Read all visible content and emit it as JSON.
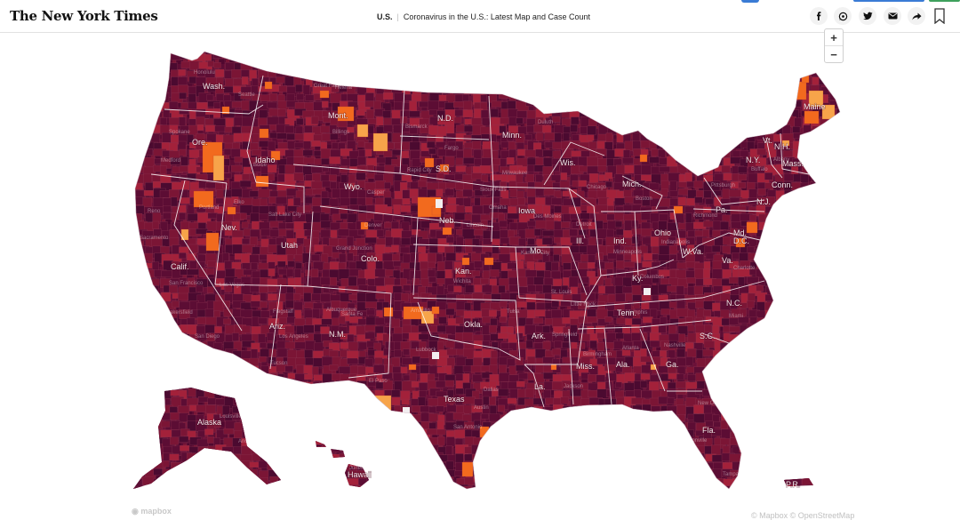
{
  "header": {
    "logo": "The New York Times",
    "section": "U.S.",
    "title": "Coronavirus in the U.S.: Latest Map and Case Count"
  },
  "share_icons": [
    "facebook-icon",
    "whatsapp-icon",
    "twitter-icon",
    "email-icon",
    "share-icon"
  ],
  "zoom": {
    "in_label": "+",
    "out_label": "−"
  },
  "map": {
    "colors": {
      "darkest": "#4b0a30",
      "dark": "#5c0d34",
      "medium": "#7b1535",
      "red": "#a3213a",
      "orange": "#f26a1e",
      "light_orange": "#f7a44a",
      "border": "#ffffff"
    },
    "state_labels": [
      "Wash.",
      "Ore.",
      "Calif.",
      "Nev.",
      "Idaho",
      "Mont.",
      "Wyo.",
      "Utah",
      "Ariz.",
      "Colo.",
      "N.M.",
      "N.D.",
      "S.D.",
      "Neb.",
      "Kan.",
      "Okla.",
      "Texas",
      "Minn.",
      "Iowa",
      "Mo.",
      "Ark.",
      "La.",
      "Wis.",
      "Ill.",
      "Mich.",
      "Ind.",
      "Ohio",
      "Ky.",
      "Tenn.",
      "Miss.",
      "Ala.",
      "Ga.",
      "Fla.",
      "S.C.",
      "N.C.",
      "Va.",
      "W.Va.",
      "Pa.",
      "N.Y.",
      "Vt.",
      "N.H.",
      "Mass.",
      "Conn.",
      "N.J.",
      "Md.",
      "D.C.",
      "Maine",
      "Alaska",
      "Hawaii",
      "P.R."
    ],
    "city_labels": [
      "Medford",
      "Boise",
      "Elko",
      "Salt Lake City",
      "Las Vegas",
      "Bakersfield",
      "San Diego",
      "Tucson",
      "Flagstaff",
      "Albuquerque",
      "Santa Fe",
      "Denver",
      "Grand Junction",
      "Casper",
      "Billings",
      "Helena",
      "Great Falls",
      "Fargo",
      "Bismarck",
      "Rapid City",
      "Sioux Falls",
      "Omaha",
      "Lincoln",
      "Wichita",
      "Tulsa",
      "Dallas",
      "Houston",
      "San Antonio",
      "Austin",
      "El Paso",
      "Lubbock",
      "Amarillo",
      "Duluth",
      "Des Moines",
      "Kansas City",
      "St. Louis",
      "Springfield",
      "Little Rock",
      "Memphis",
      "Nashville",
      "Atlanta",
      "Birmingham",
      "Jackson",
      "New Orleans",
      "Jacksonville",
      "Tampa",
      "Miami",
      "Charlotte",
      "Richmond",
      "Pittsburgh",
      "Buffalo",
      "Albany",
      "Boston",
      "Detroit",
      "Chicago",
      "Milwaukee",
      "Minneapolis",
      "Indianapolis",
      "Columbus",
      "Louisville",
      "Anchorage",
      "Juneau",
      "Honolulu",
      "Seattle",
      "Spokane",
      "Portland",
      "Reno",
      "Sacramento",
      "San Francisco",
      "Los Angeles",
      "Phoenix"
    ],
    "attribution_left": "mapbox",
    "attribution_right": "© Mapbox © OpenStreetMap"
  }
}
